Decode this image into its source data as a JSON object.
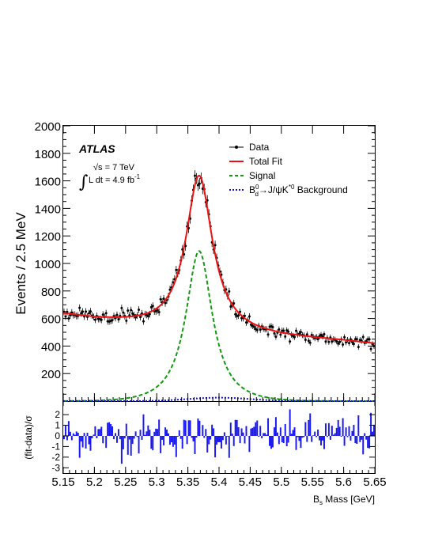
{
  "chart_data": {
    "type": "line",
    "upper_panel": {
      "ylabel": "Events / 2.5 MeV",
      "ylim": [
        0,
        2000
      ],
      "y_ticks": [
        200,
        400,
        600,
        800,
        1000,
        1200,
        1400,
        1600,
        1800,
        2000
      ],
      "experiment_label": "ATLAS",
      "energy_label": "√s = 7 TeV",
      "lumi_label": "∫ L dt = 4.9 fb⁻¹",
      "legend": {
        "placement": "top-right",
        "entries": [
          {
            "name": "Data",
            "color": "#000000",
            "style": "points"
          },
          {
            "name": "Total Fit",
            "color": "#ee1111",
            "style": "solid"
          },
          {
            "name": "Signal",
            "color": "#119911",
            "style": "dashed"
          },
          {
            "name": "B_d⁰→J/ψK*⁰ Background",
            "color": "#1111cc",
            "style": "dotted"
          }
        ]
      },
      "model": {
        "background": [
          [
            5.15,
            640
          ],
          [
            5.2,
            610
          ],
          [
            5.25,
            592
          ],
          [
            5.3,
            570
          ],
          [
            5.35,
            548
          ],
          [
            5.4,
            528
          ],
          [
            5.45,
            505
          ],
          [
            5.5,
            485
          ],
          [
            5.55,
            465
          ],
          [
            5.6,
            445
          ],
          [
            5.65,
            420
          ]
        ],
        "signal_peak": {
          "mass": 5.368,
          "height": 1090,
          "width": 0.026
        },
        "bd_background_peak": {
          "mass": 5.4,
          "height": 25,
          "width": 0.07
        }
      }
    },
    "lower_panel": {
      "ylabel": "(fit-data)/σ",
      "ylim": [
        -3.5,
        3.2
      ],
      "y_ticks": [
        -3,
        -2,
        -1,
        0,
        1,
        2
      ]
    },
    "x_axis": {
      "label": "B_s Mass [GeV]",
      "xlim": [
        5.15,
        5.65
      ],
      "ticks": [
        "5.15",
        "5.2",
        "5.25",
        "5.3",
        "5.35",
        "5.4",
        "5.45",
        "5.5",
        "5.55",
        "5.6",
        "5.65"
      ]
    },
    "n_bins": 200,
    "bin_width": 0.0025
  }
}
